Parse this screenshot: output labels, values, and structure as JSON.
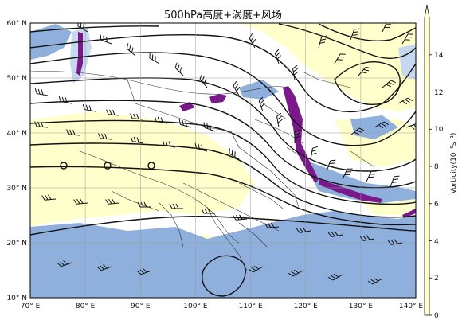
{
  "title": "500hPa高度+涡度+风场",
  "map": {
    "lon_range": [
      70,
      140
    ],
    "lat_range": [
      10,
      60
    ],
    "lon_ticks": [
      "70° E",
      "80° E",
      "90° E",
      "100° E",
      "110° E",
      "120° E",
      "130° E",
      "140° E"
    ],
    "lat_ticks": [
      "10° N",
      "20° N",
      "30° N",
      "40° N",
      "50° N",
      "60° N"
    ],
    "gridlines": true
  },
  "colorbar": {
    "label": "Vorticity(10⁻⁵s⁻¹)",
    "ticks": [
      "0",
      "2",
      "4",
      "6",
      "8",
      "10",
      "12",
      "14"
    ],
    "range": [
      0,
      15
    ],
    "extend": "max",
    "colors": {
      "low": "#ffffcc",
      "high": "#ffffe0"
    }
  },
  "colors": {
    "shade_light": "#ffffcc",
    "shade_blue": "#8fb0dd",
    "shade_lightblue": "#c6d8ef",
    "shade_purple": "#7a1a8a",
    "contour": "#111111",
    "border": "#333333"
  }
}
